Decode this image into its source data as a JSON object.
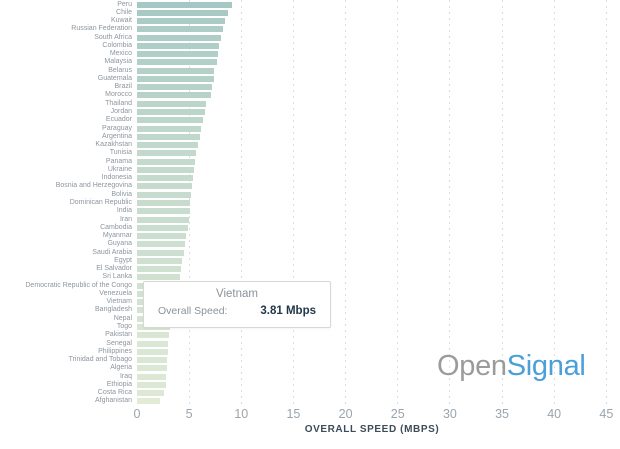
{
  "chart_data": {
    "type": "bar",
    "orientation": "horizontal",
    "xlabel": "OVERALL SPEED (MBPS)",
    "xlim": [
      0,
      45
    ],
    "x_ticks": [
      0,
      5,
      10,
      15,
      20,
      25,
      30,
      35,
      40,
      45
    ],
    "grid": "vertical dashed, every 5 Mbps",
    "categories": [
      "Peru",
      "Chile",
      "Kuwait",
      "Russian Federation",
      "South Africa",
      "Colombia",
      "Mexico",
      "Malaysia",
      "Belarus",
      "Guatemala",
      "Brazil",
      "Morocco",
      "Thailand",
      "Jordan",
      "Ecuador",
      "Paraguay",
      "Argentina",
      "Kazakhstan",
      "Tunisia",
      "Panama",
      "Ukraine",
      "Indonesia",
      "Bosnia and Herzegovina",
      "Bolivia",
      "Dominican Republic",
      "India",
      "Iran",
      "Cambodia",
      "Myanmar",
      "Guyana",
      "Saudi Arabia",
      "Egypt",
      "El Salvador",
      "Sri Lanka",
      "Democratic Republic of the Congo",
      "Venezuela",
      "Vietnam",
      "Bangladesh",
      "Nepal",
      "Togo",
      "Pakistan",
      "Senegal",
      "Philippines",
      "Trinidad and Tobago",
      "Algeria",
      "Iraq",
      "Ethiopia",
      "Costa Rica",
      "Afghanistan"
    ],
    "values": [
      9.1,
      8.7,
      8.4,
      8.2,
      8.05,
      7.9,
      7.8,
      7.65,
      7.4,
      7.35,
      7.15,
      7.05,
      6.6,
      6.5,
      6.3,
      6.15,
      6.0,
      5.85,
      5.7,
      5.6,
      5.5,
      5.4,
      5.3,
      5.2,
      5.1,
      5.05,
      4.95,
      4.85,
      4.7,
      4.65,
      4.5,
      4.35,
      4.25,
      4.1,
      4.0,
      3.9,
      3.81,
      3.7,
      3.6,
      3.2,
      3.1,
      3.0,
      2.95,
      2.9,
      2.85,
      2.8,
      2.75,
      2.6,
      2.2
    ]
  },
  "tooltip": {
    "country": "Vietnam",
    "metric_label": "Overall Speed:",
    "metric_value": "3.81 Mbps"
  },
  "logo": {
    "part1": "Open",
    "part2": "Signal"
  },
  "colors": {
    "bar_high": "#a5c8c4",
    "bar_low": "#e1ebd6",
    "gridline": "#dddddd",
    "country_label": "#8d969e",
    "tick_label": "#9aa4ac",
    "axis_title": "#3d4c59",
    "tooltip_text": "#8a939b",
    "tooltip_value": "#22384a",
    "logo_grey": "#9b9b9b",
    "logo_blue": "#4ba0d9"
  }
}
